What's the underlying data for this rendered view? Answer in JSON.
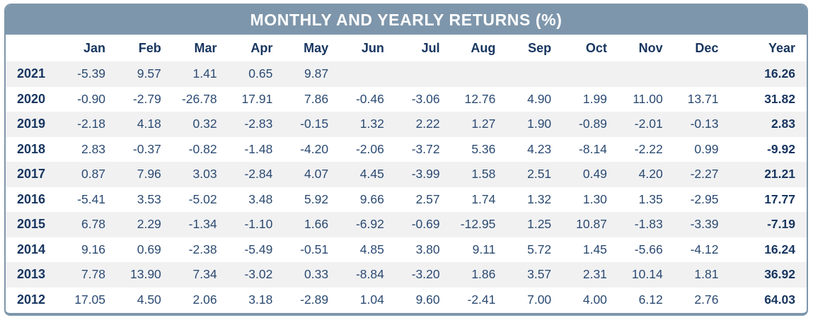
{
  "title": "MONTHLY AND YEARLY RETURNS (%)",
  "columns": [
    "Jan",
    "Feb",
    "Mar",
    "Apr",
    "May",
    "Jun",
    "Jul",
    "Aug",
    "Sep",
    "Oct",
    "Nov",
    "Dec",
    "Year"
  ],
  "rows": [
    {
      "year": "2021",
      "months": [
        "-5.39",
        "9.57",
        "1.41",
        "0.65",
        "9.87",
        "",
        "",
        "",
        "",
        "",
        "",
        ""
      ],
      "year_total": "16.26"
    },
    {
      "year": "2020",
      "months": [
        "-0.90",
        "-2.79",
        "-26.78",
        "17.91",
        "7.86",
        "-0.46",
        "-3.06",
        "12.76",
        "4.90",
        "1.99",
        "11.00",
        "13.71"
      ],
      "year_total": "31.82"
    },
    {
      "year": "2019",
      "months": [
        "-2.18",
        "4.18",
        "0.32",
        "-2.83",
        "-0.15",
        "1.32",
        "2.22",
        "1.27",
        "1.90",
        "-0.89",
        "-2.01",
        "-0.13"
      ],
      "year_total": "2.83"
    },
    {
      "year": "2018",
      "months": [
        "2.83",
        "-0.37",
        "-0.82",
        "-1.48",
        "-4.20",
        "-2.06",
        "-3.72",
        "5.36",
        "4.23",
        "-8.14",
        "-2.22",
        "0.99"
      ],
      "year_total": "-9.92"
    },
    {
      "year": "2017",
      "months": [
        "0.87",
        "7.96",
        "3.03",
        "-2.84",
        "4.07",
        "4.45",
        "-3.99",
        "1.58",
        "2.51",
        "0.49",
        "4.20",
        "-2.27"
      ],
      "year_total": "21.21"
    },
    {
      "year": "2016",
      "months": [
        "-5.41",
        "3.53",
        "-5.02",
        "3.48",
        "5.92",
        "9.66",
        "2.57",
        "1.74",
        "1.32",
        "1.30",
        "1.35",
        "-2.95"
      ],
      "year_total": "17.77"
    },
    {
      "year": "2015",
      "months": [
        "6.78",
        "2.29",
        "-1.34",
        "-1.10",
        "1.66",
        "-6.92",
        "-0.69",
        "-12.95",
        "1.25",
        "10.87",
        "-1.83",
        "-3.39"
      ],
      "year_total": "-7.19"
    },
    {
      "year": "2014",
      "months": [
        "9.16",
        "0.69",
        "-2.38",
        "-5.49",
        "-0.51",
        "4.85",
        "3.80",
        "9.11",
        "5.72",
        "1.45",
        "-5.66",
        "-4.12"
      ],
      "year_total": "16.24"
    },
    {
      "year": "2013",
      "months": [
        "7.78",
        "13.90",
        "7.34",
        "-3.02",
        "0.33",
        "-8.84",
        "-3.20",
        "1.86",
        "3.57",
        "2.31",
        "10.14",
        "1.81"
      ],
      "year_total": "36.92"
    },
    {
      "year": "2012",
      "months": [
        "17.05",
        "4.50",
        "2.06",
        "3.18",
        "-2.89",
        "1.04",
        "9.60",
        "-2.41",
        "7.00",
        "4.00",
        "6.12",
        "2.76"
      ],
      "year_total": "64.03"
    }
  ],
  "colors": {
    "banner_bg": "#7e96ab",
    "card_border": "#7e96ab",
    "header_text": "#17355f",
    "cell_text": "#2b4a72",
    "alt_row_bg": "#f1f1f2"
  },
  "chart_data": {
    "type": "table",
    "title": "MONTHLY AND YEARLY RETURNS (%)",
    "columns": [
      "Jan",
      "Feb",
      "Mar",
      "Apr",
      "May",
      "Jun",
      "Jul",
      "Aug",
      "Sep",
      "Oct",
      "Nov",
      "Dec",
      "Year"
    ],
    "series": [
      {
        "name": "2021",
        "values": [
          -5.39,
          9.57,
          1.41,
          0.65,
          9.87,
          null,
          null,
          null,
          null,
          null,
          null,
          null
        ],
        "year_total": 16.26
      },
      {
        "name": "2020",
        "values": [
          -0.9,
          -2.79,
          -26.78,
          17.91,
          7.86,
          -0.46,
          -3.06,
          12.76,
          4.9,
          1.99,
          11.0,
          13.71
        ],
        "year_total": 31.82
      },
      {
        "name": "2019",
        "values": [
          -2.18,
          4.18,
          0.32,
          -2.83,
          -0.15,
          1.32,
          2.22,
          1.27,
          1.9,
          -0.89,
          -2.01,
          -0.13
        ],
        "year_total": 2.83
      },
      {
        "name": "2018",
        "values": [
          2.83,
          -0.37,
          -0.82,
          -1.48,
          -4.2,
          -2.06,
          -3.72,
          5.36,
          4.23,
          -8.14,
          -2.22,
          0.99
        ],
        "year_total": -9.92
      },
      {
        "name": "2017",
        "values": [
          0.87,
          7.96,
          3.03,
          -2.84,
          4.07,
          4.45,
          -3.99,
          1.58,
          2.51,
          0.49,
          4.2,
          -2.27
        ],
        "year_total": 21.21
      },
      {
        "name": "2016",
        "values": [
          -5.41,
          3.53,
          -5.02,
          3.48,
          5.92,
          9.66,
          2.57,
          1.74,
          1.32,
          1.3,
          1.35,
          -2.95
        ],
        "year_total": 17.77
      },
      {
        "name": "2015",
        "values": [
          6.78,
          2.29,
          -1.34,
          -1.1,
          1.66,
          -6.92,
          -0.69,
          -12.95,
          1.25,
          10.87,
          -1.83,
          -3.39
        ],
        "year_total": -7.19
      },
      {
        "name": "2014",
        "values": [
          9.16,
          0.69,
          -2.38,
          -5.49,
          -0.51,
          4.85,
          3.8,
          9.11,
          5.72,
          1.45,
          -5.66,
          -4.12
        ],
        "year_total": 16.24
      },
      {
        "name": "2013",
        "values": [
          7.78,
          13.9,
          7.34,
          -3.02,
          0.33,
          -8.84,
          -3.2,
          1.86,
          3.57,
          2.31,
          10.14,
          1.81
        ],
        "year_total": 36.92
      },
      {
        "name": "2012",
        "values": [
          17.05,
          4.5,
          2.06,
          3.18,
          -2.89,
          1.04,
          9.6,
          -2.41,
          7.0,
          4.0,
          6.12,
          2.76
        ],
        "year_total": 64.03
      }
    ]
  }
}
